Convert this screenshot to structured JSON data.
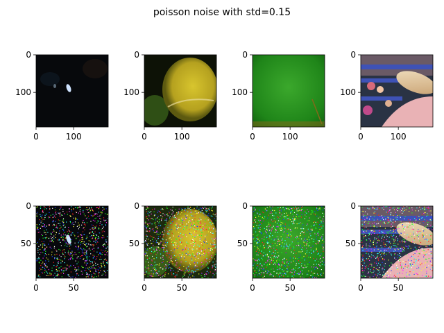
{
  "figure": {
    "title": "poisson noise with std=0.15"
  },
  "chart_data": {
    "type": "image_grid",
    "title": "poisson noise with std=0.15",
    "rows": [
      {
        "x_ticks": [
          "0",
          "100"
        ],
        "x_tick_values": [
          0,
          100
        ],
        "y_ticks": [
          "0",
          "100"
        ],
        "y_tick_values": [
          0,
          100
        ],
        "extent": 192,
        "images": [
          {
            "colors": {
              "base": "#07090c",
              "highlight": "#cfe3ff"
            }
          },
          {
            "colors": {
              "base": "#0d1206",
              "highlight": "#c9b627",
              "shadow": "#3f6a1c"
            }
          },
          {
            "colors": {
              "base": "#1f7f17",
              "highlight": "#39a52d",
              "edge": "#7f6a1a"
            }
          },
          {
            "colors": {
              "base": "#2a3344",
              "highlight": "#e9b2b5",
              "accent": "#3e52b6"
            }
          }
        ]
      },
      {
        "x_ticks": [
          "0",
          "50"
        ],
        "x_tick_values": [
          0,
          50
        ],
        "y_ticks": [
          "0",
          "50"
        ],
        "y_tick_values": [
          0,
          50
        ],
        "extent": 96,
        "noise": "poisson",
        "images": [
          {
            "colors": {
              "base": "#07090c",
              "highlight": "#cfe3ff"
            }
          },
          {
            "colors": {
              "base": "#0d1206",
              "highlight": "#c9b627",
              "shadow": "#3f6a1c"
            }
          },
          {
            "colors": {
              "base": "#1f7f17",
              "highlight": "#39a52d",
              "edge": "#7f6a1a"
            }
          },
          {
            "colors": {
              "base": "#2a3344",
              "highlight": "#e9b2b5",
              "accent": "#3e52b6"
            }
          }
        ]
      }
    ]
  }
}
